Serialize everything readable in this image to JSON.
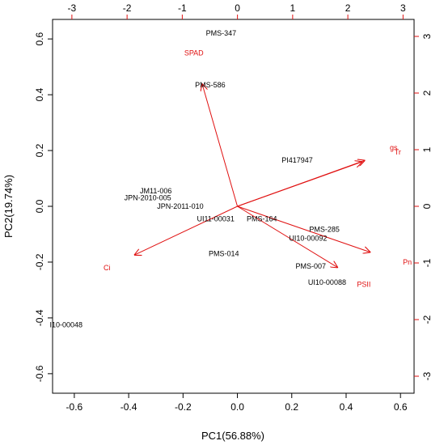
{
  "chart_data": {
    "type": "scatter",
    "subtype": "pca-biplot",
    "xlabel": "PC1(56.88%)",
    "ylabel": "PC2(19.74%)",
    "xlim": [
      -0.68,
      0.65
    ],
    "ylim": [
      -0.67,
      0.67
    ],
    "x_ticks": [
      -0.6,
      -0.4,
      -0.2,
      0.0,
      0.2,
      0.4,
      0.6
    ],
    "y_ticks": [
      -0.6,
      -0.4,
      -0.2,
      0.0,
      0.2,
      0.4,
      0.6
    ],
    "x_tick_labels": [
      "-0.6",
      "-0.4",
      "-0.2",
      "0.0",
      "0.2",
      "0.4",
      "0.6"
    ],
    "y_tick_labels": [
      "-0.6",
      "-0.4",
      "-0.2",
      "0.0",
      "0.2",
      "0.4",
      "0.6"
    ],
    "top_axis": {
      "color": "#e01010",
      "lim": [
        -3.35,
        3.2
      ],
      "ticks": [
        -3,
        -2,
        -1,
        0,
        1,
        2,
        3
      ],
      "tick_labels": [
        "-3",
        "-2",
        "-1",
        "0",
        "1",
        "2",
        "3"
      ]
    },
    "right_axis": {
      "color": "#e01010",
      "lim": [
        -3.3,
        3.3
      ],
      "ticks": [
        3,
        2,
        1,
        0,
        -1,
        -2,
        -3
      ],
      "tick_labels": [
        "3",
        "2",
        "1",
        "0",
        "-1",
        "-2",
        "-3"
      ]
    },
    "observations": [
      {
        "name": "PMS-347",
        "x": -0.06,
        "y": 0.62
      },
      {
        "name": "PMS-586",
        "x": -0.1,
        "y": 0.435
      },
      {
        "name": "PI417947",
        "x": 0.22,
        "y": 0.165
      },
      {
        "name": "JM11-006",
        "x": -0.3,
        "y": 0.055
      },
      {
        "name": "JPN-2010-005",
        "x": -0.33,
        "y": 0.03
      },
      {
        "name": "JPN-2011-010",
        "x": -0.21,
        "y": 0.0
      },
      {
        "name": "UI11-00031",
        "x": -0.08,
        "y": -0.045
      },
      {
        "name": "PMS-164",
        "x": 0.09,
        "y": -0.045
      },
      {
        "name": "PMS-285",
        "x": 0.32,
        "y": -0.082
      },
      {
        "name": "UI10-00092",
        "x": 0.26,
        "y": -0.115
      },
      {
        "name": "PMS-014",
        "x": -0.05,
        "y": -0.17
      },
      {
        "name": "PMS-007",
        "x": 0.27,
        "y": -0.215
      },
      {
        "name": "UI10-00088",
        "x": 0.33,
        "y": -0.272
      },
      {
        "name": "I10-00048",
        "x": -0.63,
        "y": -0.425
      }
    ],
    "variables": [
      {
        "name": "SPAD",
        "arrow_x": -0.13,
        "arrow_y": 0.44,
        "label_x": -0.16,
        "label_y": 0.55
      },
      {
        "name": "gs",
        "arrow_x": 0.47,
        "arrow_y": 0.165,
        "label_x": 0.575,
        "label_y": 0.21
      },
      {
        "name": "Tr",
        "arrow_x": 0.46,
        "arrow_y": 0.16,
        "label_x": 0.59,
        "label_y": 0.195
      },
      {
        "name": "Pn",
        "arrow_x": 0.49,
        "arrow_y": -0.165,
        "label_x": 0.625,
        "label_y": -0.2
      },
      {
        "name": "PSII",
        "arrow_x": 0.37,
        "arrow_y": -0.22,
        "label_x": 0.465,
        "label_y": -0.28
      },
      {
        "name": "Ci",
        "arrow_x": -0.38,
        "arrow_y": -0.175,
        "label_x": -0.48,
        "label_y": -0.22
      }
    ],
    "grid": false,
    "colors": {
      "observations": "#000000",
      "variables": "#e01010"
    }
  }
}
